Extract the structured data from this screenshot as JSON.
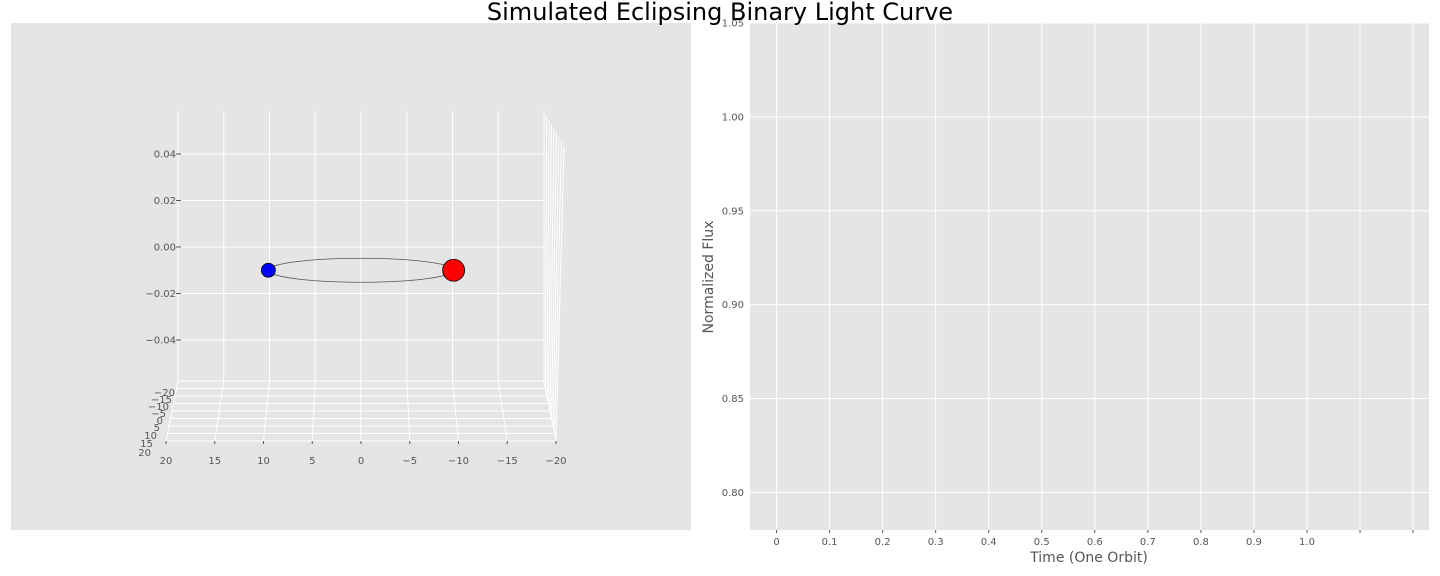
{
  "figure": {
    "title": "Simulated Eclipsing Binary Light Curve"
  },
  "chart_data": [
    {
      "type": "scatter",
      "panel": "3d-orbit",
      "projection": "3d",
      "title": "",
      "xlabel": "",
      "ylabel": "",
      "zlabel": "",
      "grid": true,
      "x_ticks": [
        "20",
        "15",
        "10",
        "5",
        "0",
        "−5",
        "−10",
        "−15",
        "−20"
      ],
      "y_ticks": [
        "−20",
        "−15",
        "−10",
        "−5",
        "0",
        "5",
        "10",
        "15",
        "20"
      ],
      "z_ticks": [
        "0.04",
        "0.02",
        "0.00",
        "−0.02",
        "−0.04"
      ],
      "xlim": [
        -20,
        20
      ],
      "ylim": [
        -20,
        20
      ],
      "zlim": [
        -0.05,
        0.05
      ],
      "orbit": {
        "shape": "ellipse",
        "color": "#555555"
      },
      "bodies": [
        {
          "name": "",
          "color": "#0000ff",
          "x": 9.5,
          "z": -0.01,
          "size": "small"
        },
        {
          "name": "",
          "color": "#ff0000",
          "x": -9.5,
          "z": -0.01,
          "size": "large"
        }
      ]
    },
    {
      "type": "line",
      "panel": "light-curve",
      "title": "",
      "xlabel": "Time (One Orbit)",
      "ylabel": "Normalized Flux",
      "grid": true,
      "x": [],
      "y": [],
      "x_ticks": [
        "0",
        "0.1",
        "0.2",
        "0.3",
        "0.4",
        "0.5",
        "0.6",
        "0.7",
        "0.8",
        "0.9",
        "1.0",
        "",
        ""
      ],
      "x_tick_values": [
        0,
        0.1,
        0.2,
        0.3,
        0.4,
        0.5,
        0.6,
        0.7,
        0.8,
        0.9,
        1.0,
        1.1,
        1.2
      ],
      "y_ticks": [
        "0.80",
        "0.85",
        "0.90",
        "0.95",
        "1.00",
        "1.05"
      ],
      "y_tick_values": [
        0.8,
        0.85,
        0.9,
        0.95,
        1.0,
        1.05
      ],
      "xlim": [
        -0.05,
        1.23
      ],
      "ylim": [
        0.78,
        1.05
      ]
    }
  ],
  "colors": {
    "panel_background": "#e5e5e5",
    "grid": "#ffffff",
    "tick_text": "#555555"
  }
}
